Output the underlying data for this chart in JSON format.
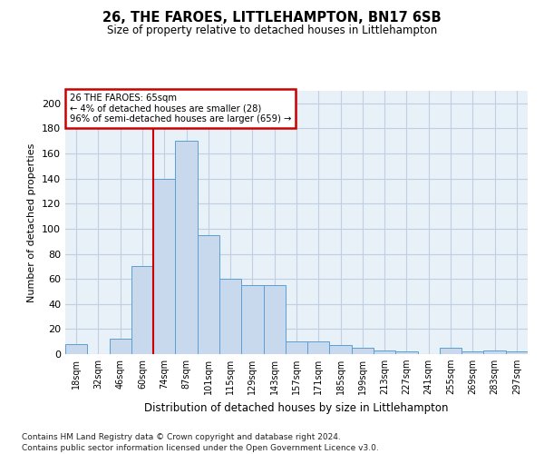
{
  "title": "26, THE FAROES, LITTLEHAMPTON, BN17 6SB",
  "subtitle": "Size of property relative to detached houses in Littlehampton",
  "xlabel": "Distribution of detached houses by size in Littlehampton",
  "ylabel": "Number of detached properties",
  "footnote1": "Contains HM Land Registry data © Crown copyright and database right 2024.",
  "footnote2": "Contains public sector information licensed under the Open Government Licence v3.0.",
  "bar_labels": [
    "18sqm",
    "32sqm",
    "46sqm",
    "60sqm",
    "74sqm",
    "87sqm",
    "101sqm",
    "115sqm",
    "129sqm",
    "143sqm",
    "157sqm",
    "171sqm",
    "185sqm",
    "199sqm",
    "213sqm",
    "227sqm",
    "241sqm",
    "255sqm",
    "269sqm",
    "283sqm",
    "297sqm"
  ],
  "bar_values": [
    8,
    0,
    12,
    70,
    140,
    170,
    95,
    60,
    55,
    55,
    10,
    10,
    7,
    5,
    3,
    2,
    0,
    5,
    2,
    3,
    2
  ],
  "bar_color": "#c8d8ed",
  "bar_edge_color": "#5a9fd4",
  "annotation_line1": "26 THE FAROES: 65sqm",
  "annotation_line2": "← 4% of detached houses are smaller (28)",
  "annotation_line3": "96% of semi-detached houses are larger (659) →",
  "annotation_box_color": "#ffffff",
  "annotation_box_edge_color": "#cc0000",
  "vline_x": 3.5,
  "vline_color": "#cc0000",
  "background_color": "#ffffff",
  "axes_bg_color": "#e8f0f8",
  "grid_color": "#c0d0e0",
  "ylim": [
    0,
    210
  ],
  "yticks": [
    0,
    20,
    40,
    60,
    80,
    100,
    120,
    140,
    160,
    180,
    200
  ]
}
